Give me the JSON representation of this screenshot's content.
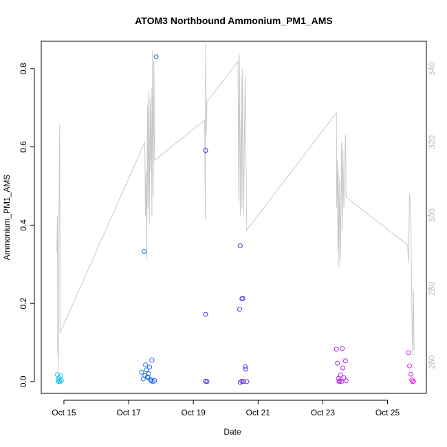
{
  "chart_data": {
    "type": "scatter",
    "title": "ATOM3 Northbound Ammonium_PM1_AMS",
    "xlabel": "Date",
    "ylabel": "Ammonium_PM1_AMS",
    "x_tick_labels": [
      "Oct 15",
      "Oct 17",
      "Oct 19",
      "Oct 21",
      "Oct 23",
      "Oct 25"
    ],
    "x_tick_values": [
      15,
      17,
      19,
      21,
      23,
      25
    ],
    "x_range_days": [
      14.3,
      26.2
    ],
    "y_left_ticks": [
      0.0,
      0.2,
      0.4,
      0.6,
      0.8
    ],
    "y_left_tick_labels": [
      "0.0",
      "0.2",
      "0.4",
      "0.6",
      "0.8"
    ],
    "ylim_left": [
      -0.03,
      0.87
    ],
    "y_right_ticks": [
      260,
      280,
      300,
      320,
      340
    ],
    "y_right_tick_labels": [
      "260",
      "280",
      "300",
      "320",
      "340"
    ],
    "ylim_right": [
      251.5,
      347.5
    ],
    "grid": false,
    "colors": {
      "points_gradient": [
        "#1ec3f0",
        "#1f7fe6",
        "#2a2ae8",
        "#7a2ae6",
        "#b21fe0",
        "#f020e0"
      ],
      "right_axis_line": "#c8c8c8",
      "axis": "#000000"
    },
    "series": [
      {
        "values_xy": [
          [
            14.8,
            0.018
          ],
          [
            14.82,
            0.005
          ],
          [
            14.85,
            0.01
          ],
          [
            14.87,
            0.002
          ],
          [
            14.9,
            0.015
          ],
          [
            14.92,
            0.003
          ],
          [
            14.88,
            0.0
          ],
          [
            14.83,
            0.0
          ],
          [
            17.48,
            0.333
          ],
          [
            17.4,
            0.024
          ],
          [
            17.45,
            0.007
          ],
          [
            17.5,
            0.015
          ],
          [
            17.52,
            0.043
          ],
          [
            17.55,
            0.03
          ],
          [
            17.58,
            0.012
          ],
          [
            17.6,
            0.01
          ],
          [
            17.62,
            0.02
          ],
          [
            17.65,
            0.037
          ],
          [
            17.68,
            0.005
          ],
          [
            17.7,
            0.002
          ],
          [
            17.72,
            0.055
          ],
          [
            17.75,
            0.0
          ],
          [
            17.8,
            0.003
          ],
          [
            17.85,
            0.83
          ],
          [
            19.38,
            0.591
          ],
          [
            19.38,
            0.172
          ],
          [
            19.38,
            0.001
          ],
          [
            19.42,
            0.0
          ],
          [
            20.45,
            0.347
          ],
          [
            20.43,
            0.185
          ],
          [
            20.5,
            0.212
          ],
          [
            20.53,
            0.213
          ],
          [
            20.45,
            -0.002
          ],
          [
            20.55,
            0.0
          ],
          [
            20.6,
            0.038
          ],
          [
            20.62,
            0.032
          ],
          [
            20.65,
            0.0
          ],
          [
            20.5,
            0.001
          ],
          [
            23.42,
            0.083
          ],
          [
            23.45,
            0.047
          ],
          [
            23.48,
            0.008
          ],
          [
            23.5,
            0.0
          ],
          [
            23.52,
            0.002
          ],
          [
            23.55,
            0.017
          ],
          [
            23.6,
            0.085
          ],
          [
            23.62,
            0.035
          ],
          [
            23.65,
            0.01
          ],
          [
            23.7,
            0.053
          ],
          [
            23.72,
            0.002
          ],
          [
            23.58,
            0.0
          ],
          [
            25.65,
            0.074
          ],
          [
            25.68,
            0.04
          ],
          [
            25.72,
            0.019
          ],
          [
            25.75,
            0.004
          ],
          [
            25.78,
            0.0
          ],
          [
            25.8,
            0.001
          ]
        ]
      },
      {
        "axis": "right",
        "values_xy": [
          [
            14.78,
            290
          ],
          [
            14.8,
            300
          ],
          [
            14.81,
            262
          ],
          [
            14.82,
            270
          ],
          [
            14.83,
            257
          ],
          [
            14.84,
            280
          ],
          [
            14.85,
            303
          ],
          [
            14.87,
            325
          ],
          [
            14.88,
            268
          ],
          [
            17.5,
            320
          ],
          [
            17.52,
            300
          ],
          [
            17.54,
            312
          ],
          [
            17.56,
            288
          ],
          [
            17.58,
            330
          ],
          [
            17.6,
            302
          ],
          [
            17.62,
            334
          ],
          [
            17.64,
            298
          ],
          [
            17.66,
            332
          ],
          [
            17.68,
            312
          ],
          [
            17.7,
            335
          ],
          [
            17.72,
            300
          ],
          [
            17.74,
            345
          ],
          [
            17.76,
            305
          ],
          [
            17.78,
            342
          ],
          [
            17.8,
            315
          ],
          [
            19.35,
            326
          ],
          [
            19.37,
            299
          ],
          [
            19.38,
            348
          ],
          [
            19.4,
            322
          ],
          [
            19.42,
            331
          ],
          [
            20.38,
            342
          ],
          [
            20.4,
            304
          ],
          [
            20.42,
            344
          ],
          [
            20.45,
            300
          ],
          [
            20.48,
            338
          ],
          [
            20.5,
            302
          ],
          [
            20.52,
            340
          ],
          [
            20.55,
            300
          ],
          [
            20.6,
            338
          ],
          [
            20.65,
            296
          ],
          [
            23.42,
            328
          ],
          [
            23.43,
            302
          ],
          [
            23.45,
            315
          ],
          [
            23.47,
            290
          ],
          [
            23.48,
            312
          ],
          [
            23.5,
            286
          ],
          [
            23.52,
            310
          ],
          [
            23.55,
            288
          ],
          [
            23.58,
            320
          ],
          [
            23.6,
            296
          ],
          [
            23.62,
            318
          ],
          [
            23.65,
            302
          ],
          [
            23.7,
            322
          ],
          [
            23.72,
            305
          ],
          [
            25.62,
            292
          ],
          [
            25.65,
            287
          ],
          [
            25.68,
            306
          ],
          [
            25.72,
            301
          ],
          [
            25.75,
            275
          ],
          [
            25.78,
            262
          ],
          [
            25.8,
            280
          ],
          [
            25.82,
            263
          ]
        ]
      }
    ]
  }
}
